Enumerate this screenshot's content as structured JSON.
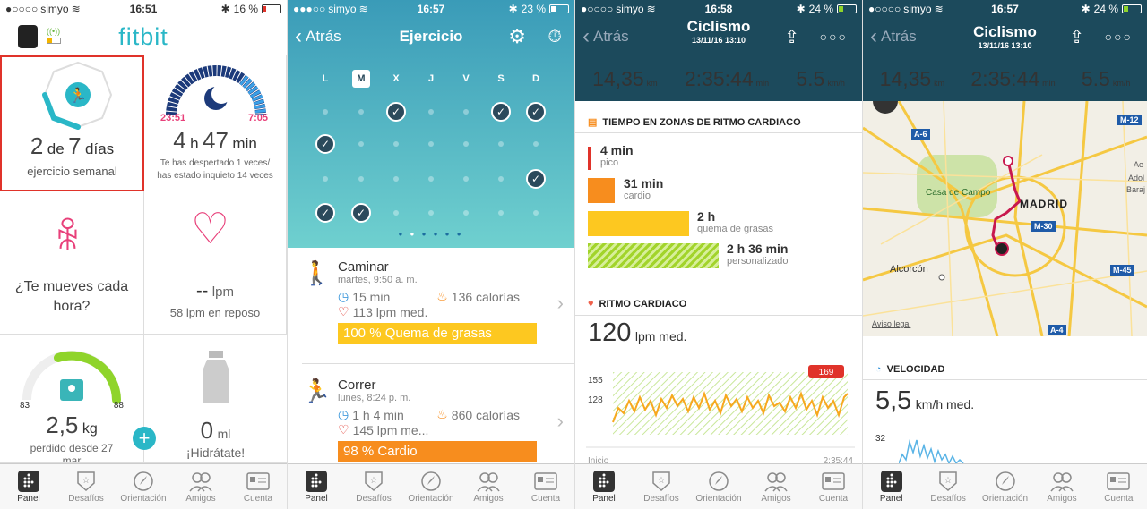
{
  "p1": {
    "carrier": "simyo",
    "time": "16:51",
    "battery": "16 %",
    "logo": "fitbit",
    "exercise": {
      "count": "2",
      "de": "de",
      "total": "7",
      "unit": "días",
      "label": "ejercicio semanal"
    },
    "sleep": {
      "start": "23:51",
      "end": "7:05",
      "hours": "4",
      "h": "h",
      "minutes": "47",
      "min": "min",
      "note1": "Te has despertado 1 veces/",
      "note2": "has estado inquieto 14 veces"
    },
    "hourly": {
      "label1": "¿Te mueves cada",
      "label2": "hora?"
    },
    "heart": {
      "value": "--",
      "unit": "lpm",
      "rest": "58 lpm en reposo"
    },
    "weight": {
      "min": "83",
      "max": "88",
      "value": "2,5",
      "unit": "kg",
      "label1": "perdido desde 27",
      "label2": "mar"
    },
    "water": {
      "value": "0",
      "unit": "ml",
      "label": "¡Hidrátate!"
    },
    "tabs": [
      "Panel",
      "Desafíos",
      "Orientación",
      "Amigos",
      "Cuenta"
    ]
  },
  "p2": {
    "carrier": "simyo",
    "time": "16:57",
    "battery": "23 %",
    "back": "Atrás",
    "title": "Ejercicio",
    "days": [
      "L",
      "M",
      "X",
      "J",
      "V",
      "S",
      "D"
    ],
    "acts": [
      {
        "name": "Caminar",
        "date": "martes, 9:50 a. m.",
        "dur": "15 min",
        "cal": "136 calorías",
        "hr": "113 lpm med.",
        "bar": "100 % Quema de grasas"
      },
      {
        "name": "Correr",
        "date": "lunes, 8:24 p. m.",
        "dur": "1 h 4 min",
        "cal": "860 calorías",
        "hr": "145 lpm me...",
        "bar": "98 % Cardio"
      }
    ],
    "tabs": [
      "Panel",
      "Desafíos",
      "Orientación",
      "Amigos",
      "Cuenta"
    ]
  },
  "p3": {
    "carrier": "simyo",
    "time": "16:58",
    "battery": "24 %",
    "back": "Atrás",
    "title": "Ciclismo",
    "date": "13/11/16 13:10",
    "dist": "14,35",
    "dist_u": "km",
    "dur": "2:35:44",
    "dur_u": "min",
    "speed": "5.5",
    "speed_u": "km/h",
    "zones_title": "TIEMPO EN ZONAS DE RITMO CARDIACO",
    "zones": [
      {
        "n": "4 min",
        "l": "pico"
      },
      {
        "n": "31 min",
        "l": "cardio"
      },
      {
        "n": "2 h",
        "l": "quema de grasas"
      },
      {
        "n": "2 h 36 min",
        "l": "personalizado"
      }
    ],
    "hr_title": "RITMO CARDIACO",
    "hr_val": "120",
    "hr_unit": "lpm med.",
    "y155": "155",
    "y128": "128",
    "peak": "169",
    "start": "Inicio",
    "end": "2:35:44",
    "tabs": [
      "Panel",
      "Desafíos",
      "Orientación",
      "Amigos",
      "Cuenta"
    ]
  },
  "p4": {
    "carrier": "simyo",
    "time": "16:57",
    "battery": "24 %",
    "back": "Atrás",
    "title": "Ciclismo",
    "date": "13/11/16 13:10",
    "dist": "14,35",
    "dist_u": "km",
    "dur": "2:35:44",
    "dur_u": "min",
    "speed": "5.5",
    "speed_u": "km/h",
    "map": {
      "a6": "A-6",
      "m12": "M-12",
      "m30": "M-30",
      "m45": "M-45",
      "a4": "A-4",
      "madrid": "MADRID",
      "campo": "Casa de Campo",
      "alcorcon": "Alcorcón",
      "legal": "Aviso legal",
      "ae": "Ae",
      "ado": "Adol",
      "bar": "Baraj"
    },
    "vel_title": "VELOCIDAD",
    "vel_val": "5,5",
    "vel_unit": "km/h med.",
    "y32": "32",
    "tabs": [
      "Panel",
      "Desafíos",
      "Orientación",
      "Amigos",
      "Cuenta"
    ]
  },
  "colors": {
    "teal": "#2ab7c7",
    "dark": "#1c4a5c",
    "red": "#e0332a",
    "orange": "#f78d1e",
    "yellow": "#fdc820",
    "green": "#a2d42b",
    "pink": "#e8407a"
  }
}
